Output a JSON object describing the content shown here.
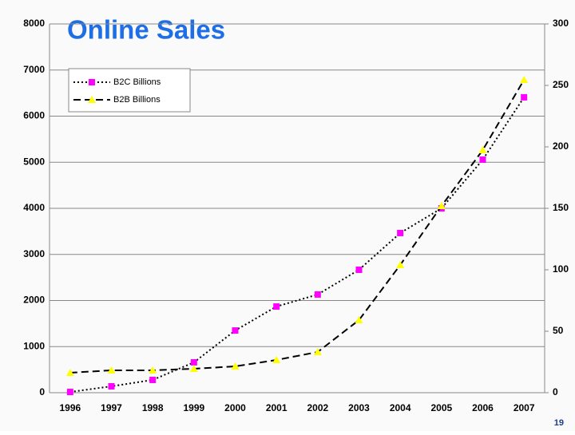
{
  "chart_data": {
    "type": "line",
    "title": "Online Sales",
    "categories": [
      "1996",
      "1997",
      "1998",
      "1999",
      "2000",
      "2001",
      "2002",
      "2003",
      "2004",
      "2005",
      "2006",
      "2007"
    ],
    "series": [
      {
        "name": "B2C Billions",
        "color": "#ff00ff",
        "marker": "square",
        "dash": "dotted",
        "axis": "y2",
        "values": [
          0.6,
          5.2,
          10.4,
          24.7,
          50.6,
          70.1,
          79.9,
          100,
          129.9,
          150,
          189.6,
          240.3
        ]
      },
      {
        "name": "B2B Billions",
        "color": "#ffff00",
        "marker": "triangle",
        "dash": "dashed",
        "axis": "y",
        "values": [
          433,
          485,
          485,
          520,
          571,
          710,
          883,
          1576,
          2771,
          4052,
          5264,
          6788
        ]
      }
    ],
    "ylim": [
      0,
      8000
    ],
    "yticks": [
      0,
      1000,
      2000,
      3000,
      4000,
      5000,
      6000,
      7000,
      8000
    ],
    "y2lim": [
      0,
      300
    ],
    "y2ticks": [
      0,
      50,
      100,
      150,
      200,
      250,
      300
    ],
    "grid": true,
    "legend": "upper-left"
  },
  "page_number": "19"
}
